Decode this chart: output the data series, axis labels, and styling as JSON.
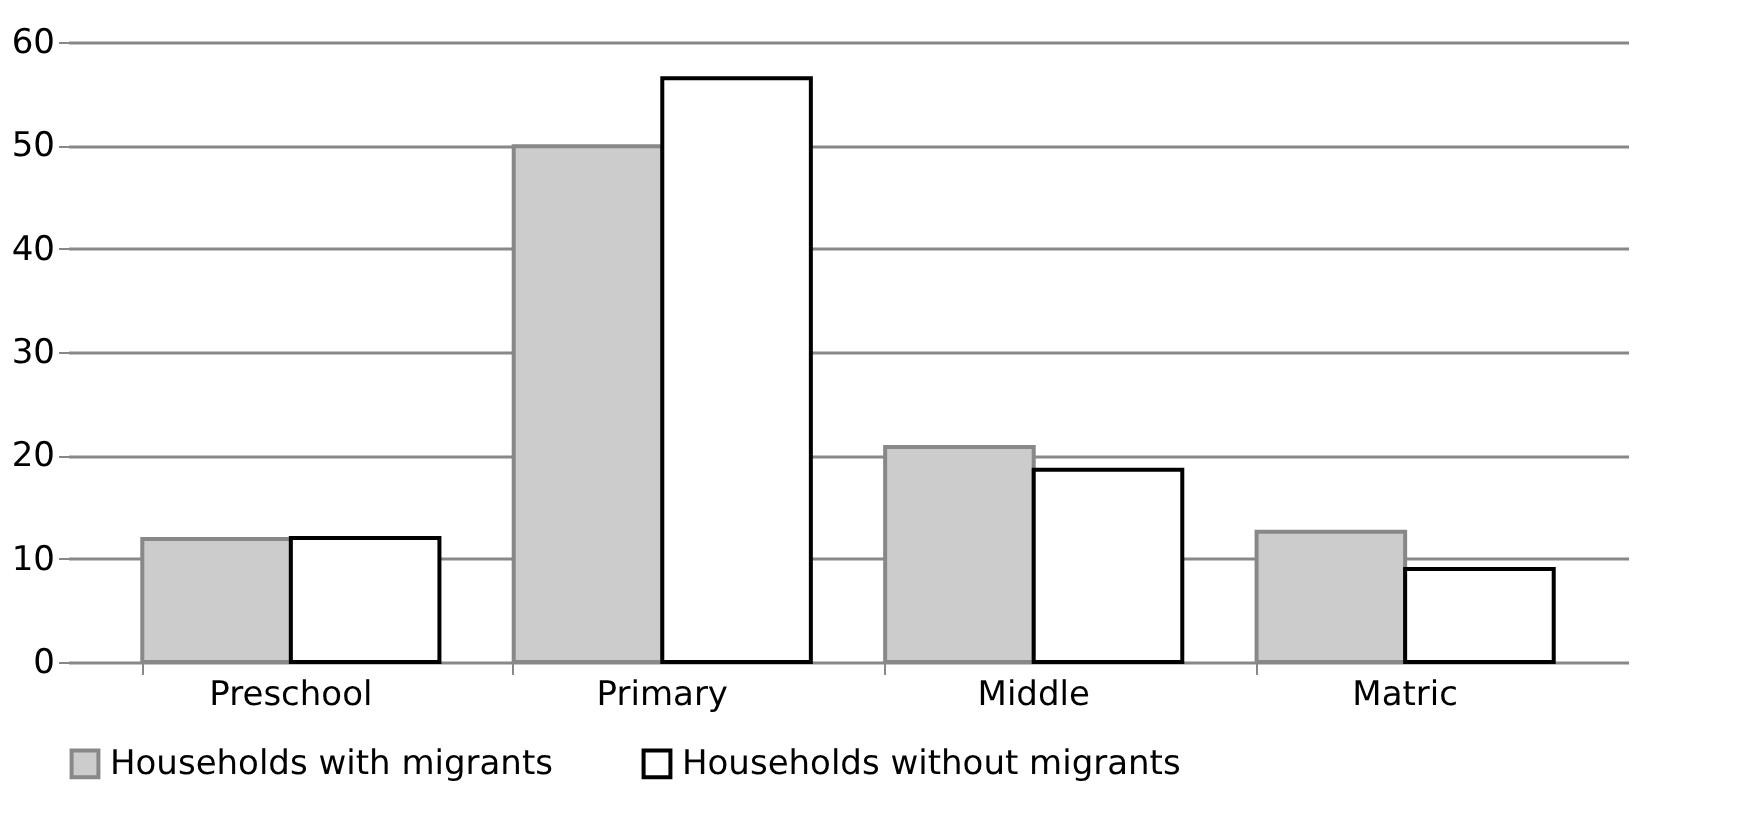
{
  "chart_data": {
    "type": "bar",
    "categories": [
      "Preschool",
      "Primary",
      "Middle",
      "Matric"
    ],
    "series": [
      {
        "name": "Households with migrants",
        "color": "#cccccc",
        "values": [
          11.9,
          49.9,
          20.8,
          12.6
        ]
      },
      {
        "name": "Households without migrants",
        "color": "#ffffff",
        "values": [
          12.0,
          56.5,
          18.6,
          9.0
        ]
      }
    ],
    "ylim": [
      0,
      60
    ],
    "yticks": [
      0,
      10,
      20,
      30,
      40,
      50,
      60
    ],
    "grid": "y",
    "legend": "bottom"
  }
}
